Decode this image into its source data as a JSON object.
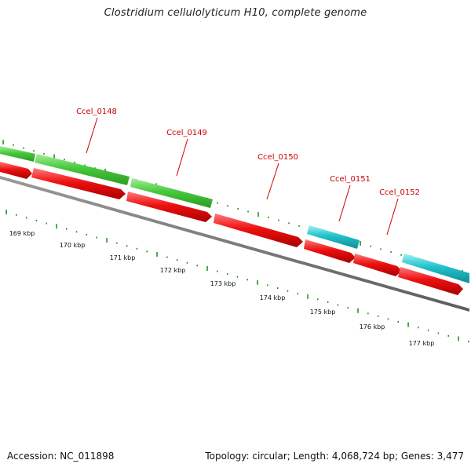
{
  "title": "Clostridium cellulolyticum H10, complete genome",
  "colors": {
    "background": "#ffffff",
    "backbone": "#777777",
    "forward_gene": "#44cc44",
    "forward_gene_cyan": "#22c4cc",
    "reverse_gene": "#ee1111",
    "tick": "#1a8c1a",
    "gene_label": "#cc0000",
    "callout_line": "#cc0000"
  },
  "genes": [
    {
      "label": "Ccel_0148"
    },
    {
      "label": "Ccel_0149"
    },
    {
      "label": "Ccel_0150"
    },
    {
      "label": "Ccel_0151"
    },
    {
      "label": "Ccel_0152"
    }
  ],
  "scale_labels": [
    "169 kbp",
    "170 kbp",
    "171 kbp",
    "172 kbp",
    "173 kbp",
    "174 kbp",
    "175 kbp",
    "176 kbp",
    "177 kbp"
  ],
  "footer": {
    "accession": "Accession: NC_011898",
    "summary": "Topology: circular; Length: 4,068,724 bp; Genes: 3,477"
  }
}
